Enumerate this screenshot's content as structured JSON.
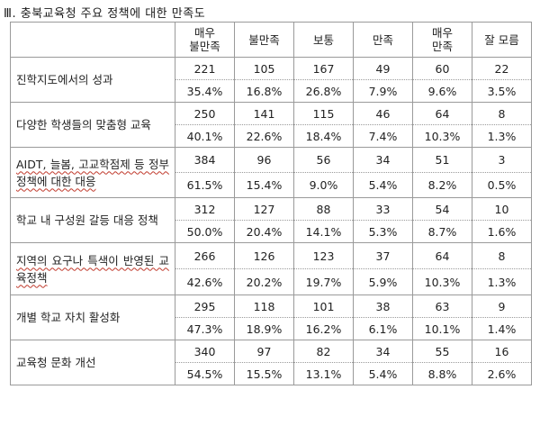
{
  "title": "Ⅲ. 충북교육청 주요 정책에 대한 만족도",
  "columns": [
    "매우\n불만족",
    "불만족",
    "보통",
    "만족",
    "매우\n만족",
    "잘 모름"
  ],
  "rows": [
    {
      "label": "진학지도에서의 성과",
      "counts": [
        "221",
        "105",
        "167",
        "49",
        "60",
        "22"
      ],
      "percents": [
        "35.4%",
        "16.8%",
        "26.8%",
        "7.9%",
        "9.6%",
        "3.5%"
      ]
    },
    {
      "label": "다양한 학생들의 맞춤형 교육",
      "counts": [
        "250",
        "141",
        "115",
        "46",
        "64",
        "8"
      ],
      "percents": [
        "40.1%",
        "22.6%",
        "18.4%",
        "7.4%",
        "10.3%",
        "1.3%"
      ]
    },
    {
      "label": "AIDT, 늘봄, 고교학점제 등 정부 정책에 대한 대응",
      "counts": [
        "384",
        "96",
        "56",
        "34",
        "51",
        "3"
      ],
      "percents": [
        "61.5%",
        "15.4%",
        "9.0%",
        "5.4%",
        "8.2%",
        "0.5%"
      ]
    },
    {
      "label": "학교 내 구성원 갈등 대응 정책",
      "counts": [
        "312",
        "127",
        "88",
        "33",
        "54",
        "10"
      ],
      "percents": [
        "50.0%",
        "20.4%",
        "14.1%",
        "5.3%",
        "8.7%",
        "1.6%"
      ]
    },
    {
      "label": "지역의 요구나 특색이 반영된 교육정책",
      "counts": [
        "266",
        "126",
        "123",
        "37",
        "64",
        "8"
      ],
      "percents": [
        "42.6%",
        "20.2%",
        "19.7%",
        "5.9%",
        "10.3%",
        "1.3%"
      ]
    },
    {
      "label": "개별 학교 자치 활성화",
      "counts": [
        "295",
        "118",
        "101",
        "38",
        "63",
        "9"
      ],
      "percents": [
        "47.3%",
        "18.9%",
        "16.2%",
        "6.1%",
        "10.1%",
        "1.4%"
      ]
    },
    {
      "label": "교육청 문화 개선",
      "counts": [
        "340",
        "97",
        "82",
        "34",
        "55",
        "16"
      ],
      "percents": [
        "54.5%",
        "15.5%",
        "13.1%",
        "5.4%",
        "8.8%",
        "2.6%"
      ]
    }
  ]
}
